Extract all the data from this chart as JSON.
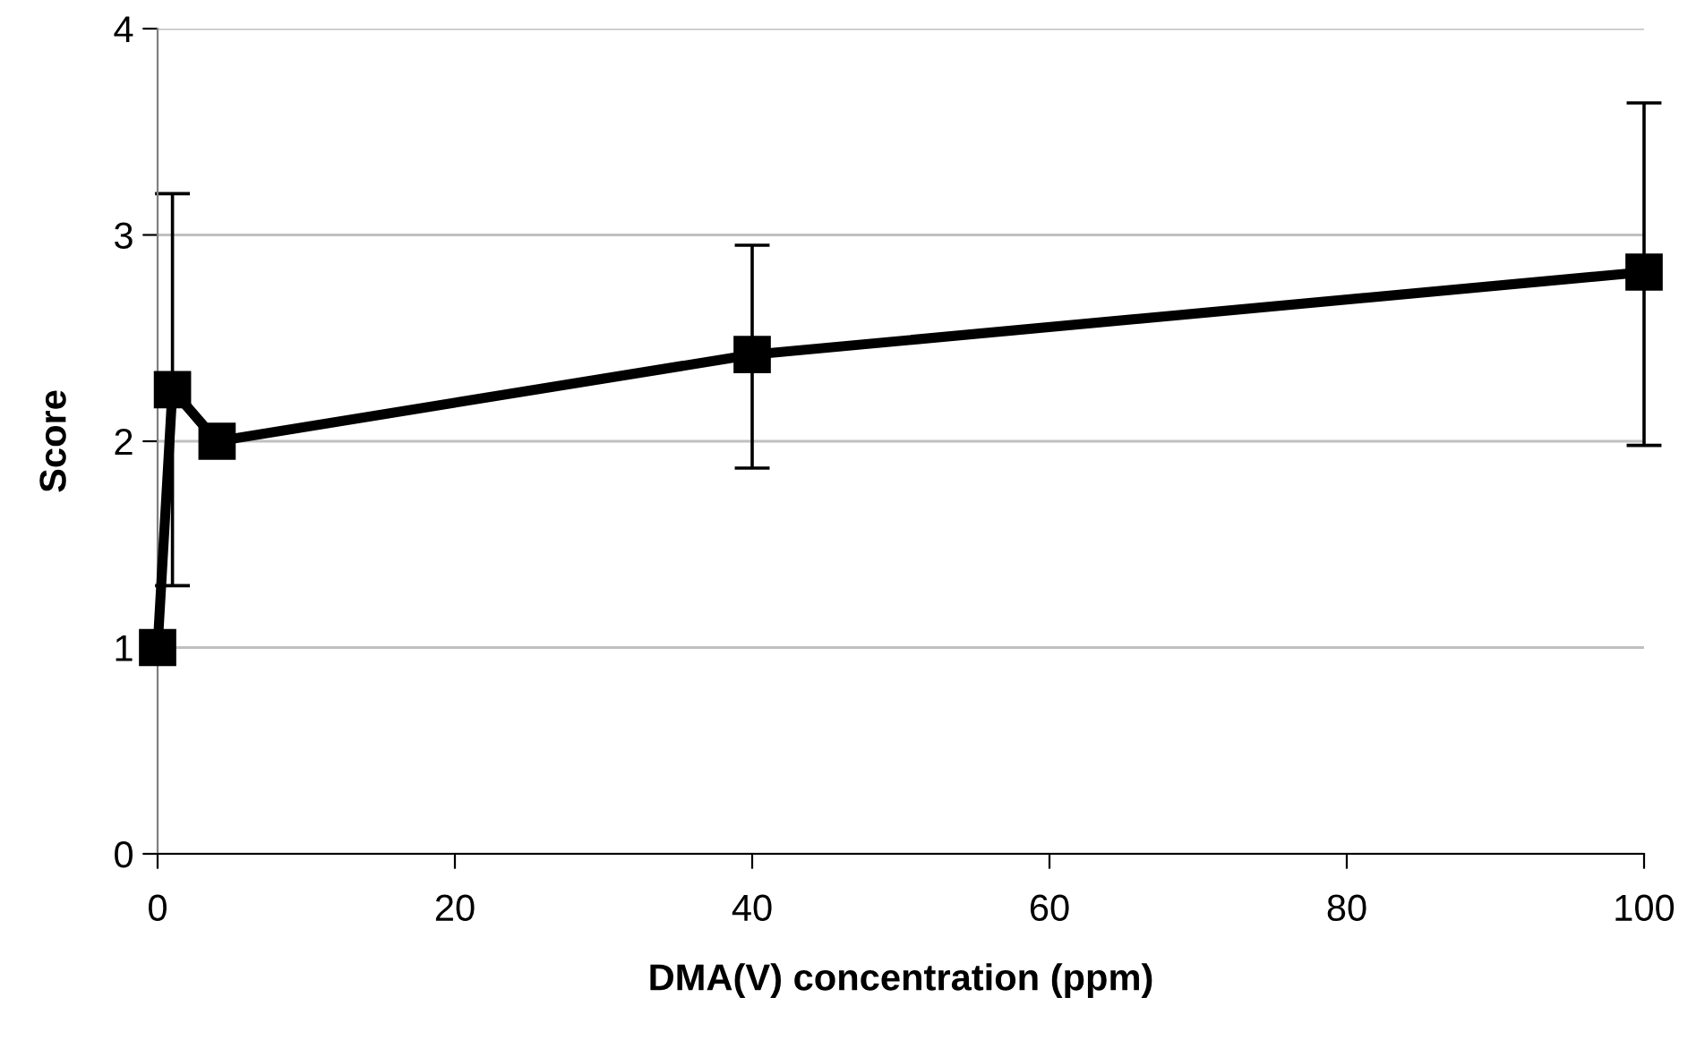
{
  "chart_data": {
    "type": "line",
    "xlabel": "DMA(V) concentration (ppm)",
    "ylabel": "Score",
    "x": [
      0,
      1,
      4,
      40,
      100
    ],
    "series": [
      {
        "color": "#000000",
        "values": [
          1.0,
          2.25,
          2.0,
          2.42,
          2.82
        ],
        "errors": [
          null,
          [
            1.3,
            3.2
          ],
          null,
          [
            1.87,
            2.95
          ],
          [
            1.98,
            3.64
          ]
        ]
      }
    ],
    "xlim": [
      0,
      100
    ],
    "xticks": [
      0,
      20,
      40,
      60,
      80,
      100
    ],
    "ylim": [
      0,
      4
    ],
    "yticks": [
      0,
      1,
      2,
      3,
      4
    ],
    "grid": "y",
    "marker": "square",
    "line_style": "solid"
  }
}
